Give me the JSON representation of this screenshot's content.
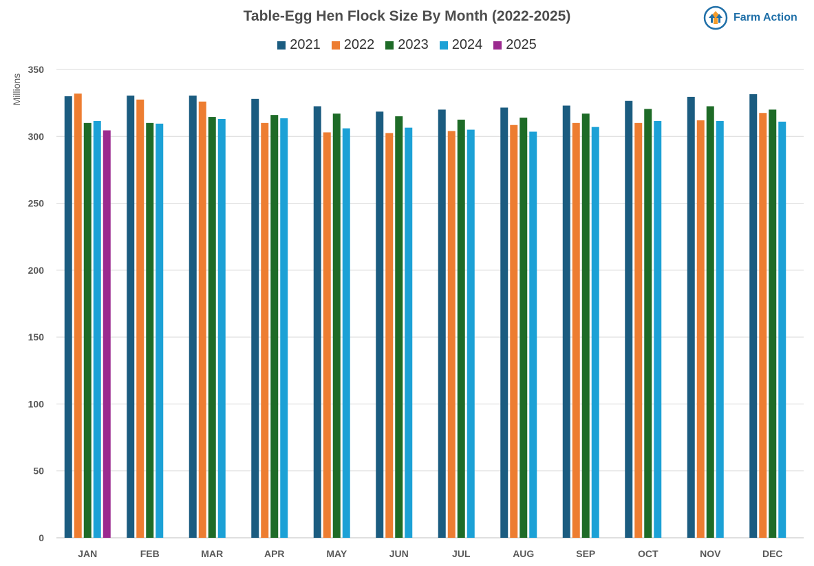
{
  "brand": {
    "name": "Farm Action",
    "logo_icon": "farm-action-arrow-logo"
  },
  "chart_data": {
    "type": "bar",
    "title": "Table-Egg Hen Flock Size By Month (2022-2025)",
    "xlabel": "",
    "ylabel": "Millions",
    "ylim": [
      0,
      350
    ],
    "yticks": [
      0,
      50,
      100,
      150,
      200,
      250,
      300,
      350
    ],
    "grid": true,
    "legend_position": "top-center",
    "categories": [
      "JAN",
      "FEB",
      "MAR",
      "APR",
      "MAY",
      "JUN",
      "JUL",
      "AUG",
      "SEP",
      "OCT",
      "NOV",
      "DEC"
    ],
    "series": [
      {
        "name": "2021",
        "color": "#1b5c80",
        "values": [
          330,
          330.5,
          330.5,
          328,
          322.5,
          318.5,
          320,
          321.5,
          323,
          326.5,
          329.5,
          331.5
        ]
      },
      {
        "name": "2022",
        "color": "#ed7d31",
        "values": [
          332,
          327.5,
          326,
          310,
          303,
          302.5,
          304,
          308.5,
          310,
          310,
          312,
          317.5
        ]
      },
      {
        "name": "2023",
        "color": "#1e6b27",
        "values": [
          310,
          310,
          314.5,
          316,
          317,
          315,
          312.5,
          314,
          317,
          320.5,
          322.5,
          320
        ]
      },
      {
        "name": "2024",
        "color": "#1ca1d6",
        "values": [
          311.5,
          309.5,
          313,
          313.5,
          306,
          306.5,
          305,
          303.5,
          307,
          311.5,
          311.5,
          311
        ]
      },
      {
        "name": "2025",
        "color": "#9b2a8f",
        "values": [
          304.5,
          null,
          null,
          null,
          null,
          null,
          null,
          null,
          null,
          null,
          null,
          null
        ]
      }
    ]
  }
}
